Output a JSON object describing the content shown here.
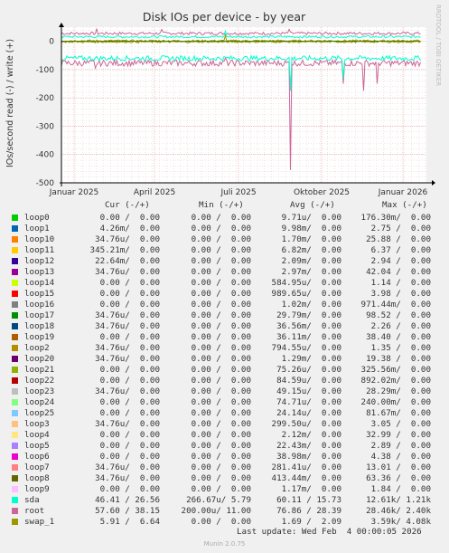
{
  "chart_data": {
    "type": "line",
    "title": "Disk IOs per device - by year",
    "ylabel": "IOs/second read (-) / write (+)",
    "ylim": [
      -500,
      50
    ],
    "yticks": [
      "0",
      "-100",
      "-200",
      "-300",
      "-400",
      "-500"
    ],
    "ytick_values": [
      0,
      -100,
      -200,
      -300,
      -400,
      -500
    ],
    "xticks": [
      "Januar 2025",
      "April 2025",
      "Juli 2025",
      "Oktober 2025",
      "Januar 2026"
    ],
    "grid": true,
    "watermark": "RRDTOOL / TOBI OETIKER",
    "series_approx": [
      {
        "name": "sda",
        "color": "#00e4c0",
        "read_avg": -60,
        "write_avg": 16
      },
      {
        "name": "root",
        "color": "#cc3f87",
        "read_avg": -77,
        "write_avg": 28,
        "read_min": -455
      }
    ]
  },
  "legend": {
    "header": {
      "cur": "Cur (-/+)",
      "min": "Min (-/+)",
      "avg": "Avg (-/+)",
      "max": "Max (-/+)"
    },
    "rows": [
      {
        "name": "loop0",
        "color": "#00cc00",
        "cur": "0.00 /  0.00",
        "min": "0.00 /  0.00",
        "avg": "9.71u/  0.00",
        "max": "176.30m/  0.00"
      },
      {
        "name": "loop1",
        "color": "#0066b3",
        "cur": "4.26m/  0.00",
        "min": "0.00 /  0.00",
        "avg": "9.98m/  0.00",
        "max": "2.75 /  0.00"
      },
      {
        "name": "loop10",
        "color": "#ff8000",
        "cur": "34.76u/  0.00",
        "min": "0.00 /  0.00",
        "avg": "1.70m/  0.00",
        "max": "25.88 /  0.00"
      },
      {
        "name": "loop11",
        "color": "#ffcc00",
        "cur": "345.21m/  0.00",
        "min": "0.00 /  0.00",
        "avg": "6.82m/  0.00",
        "max": "6.37 /  0.00"
      },
      {
        "name": "loop12",
        "color": "#330099",
        "cur": "22.64m/  0.00",
        "min": "0.00 /  0.00",
        "avg": "2.09m/  0.00",
        "max": "2.94 /  0.00"
      },
      {
        "name": "loop13",
        "color": "#990099",
        "cur": "34.76u/  0.00",
        "min": "0.00 /  0.00",
        "avg": "2.97m/  0.00",
        "max": "42.04 /  0.00"
      },
      {
        "name": "loop14",
        "color": "#ccff00",
        "cur": "0.00 /  0.00",
        "min": "0.00 /  0.00",
        "avg": "584.95u/  0.00",
        "max": "1.14 /  0.00"
      },
      {
        "name": "loop15",
        "color": "#ff0000",
        "cur": "0.00 /  0.00",
        "min": "0.00 /  0.00",
        "avg": "989.65u/  0.00",
        "max": "3.98 /  0.00"
      },
      {
        "name": "loop16",
        "color": "#808080",
        "cur": "0.00 /  0.00",
        "min": "0.00 /  0.00",
        "avg": "1.02m/  0.00",
        "max": "971.44m/  0.00"
      },
      {
        "name": "loop17",
        "color": "#008f00",
        "cur": "34.76u/  0.00",
        "min": "0.00 /  0.00",
        "avg": "29.79m/  0.00",
        "max": "98.52 /  0.00"
      },
      {
        "name": "loop18",
        "color": "#00487d",
        "cur": "34.76u/  0.00",
        "min": "0.00 /  0.00",
        "avg": "36.56m/  0.00",
        "max": "2.26 /  0.00"
      },
      {
        "name": "loop19",
        "color": "#b35a00",
        "cur": "0.00 /  0.00",
        "min": "0.00 /  0.00",
        "avg": "36.11m/  0.00",
        "max": "38.40 /  0.00"
      },
      {
        "name": "loop2",
        "color": "#b38f00",
        "cur": "34.76u/  0.00",
        "min": "0.00 /  0.00",
        "avg": "794.55u/  0.00",
        "max": "1.35 /  0.00"
      },
      {
        "name": "loop20",
        "color": "#6b006b",
        "cur": "34.76u/  0.00",
        "min": "0.00 /  0.00",
        "avg": "1.29m/  0.00",
        "max": "19.38 /  0.00"
      },
      {
        "name": "loop21",
        "color": "#8fb300",
        "cur": "0.00 /  0.00",
        "min": "0.00 /  0.00",
        "avg": "75.26u/  0.00",
        "max": "325.56m/  0.00"
      },
      {
        "name": "loop22",
        "color": "#b30000",
        "cur": "0.00 /  0.00",
        "min": "0.00 /  0.00",
        "avg": "84.59u/  0.00",
        "max": "892.02m/  0.00"
      },
      {
        "name": "loop23",
        "color": "#bebebe",
        "cur": "34.76u/  0.00",
        "min": "0.00 /  0.00",
        "avg": "49.15u/  0.00",
        "max": "28.29m/  0.00"
      },
      {
        "name": "loop24",
        "color": "#80ff80",
        "cur": "0.00 /  0.00",
        "min": "0.00 /  0.00",
        "avg": "74.71u/  0.00",
        "max": "240.00m/  0.00"
      },
      {
        "name": "loop25",
        "color": "#80c9ff",
        "cur": "0.00 /  0.00",
        "min": "0.00 /  0.00",
        "avg": "24.14u/  0.00",
        "max": "81.67m/  0.00"
      },
      {
        "name": "loop3",
        "color": "#ffc080",
        "cur": "34.76u/  0.00",
        "min": "0.00 /  0.00",
        "avg": "299.50u/  0.00",
        "max": "3.05 /  0.00"
      },
      {
        "name": "loop4",
        "color": "#ffe680",
        "cur": "0.00 /  0.00",
        "min": "0.00 /  0.00",
        "avg": "2.12m/  0.00",
        "max": "32.99 /  0.00"
      },
      {
        "name": "loop5",
        "color": "#aa80ff",
        "cur": "0.00 /  0.00",
        "min": "0.00 /  0.00",
        "avg": "22.43m/  0.00",
        "max": "2.89 /  0.00"
      },
      {
        "name": "loop6",
        "color": "#ee00cc",
        "cur": "0.00 /  0.00",
        "min": "0.00 /  0.00",
        "avg": "38.98m/  0.00",
        "max": "4.38 /  0.00"
      },
      {
        "name": "loop7",
        "color": "#ff8080",
        "cur": "34.76u/  0.00",
        "min": "0.00 /  0.00",
        "avg": "281.41u/  0.00",
        "max": "13.01 /  0.00"
      },
      {
        "name": "loop8",
        "color": "#666600",
        "cur": "34.76u/  0.00",
        "min": "0.00 /  0.00",
        "avg": "413.44m/  0.00",
        "max": "63.36 /  0.00"
      },
      {
        "name": "loop9",
        "color": "#ffbfff",
        "cur": "0.00 /  0.00",
        "min": "0.00 /  0.00",
        "avg": "1.17m/  0.00",
        "max": "1.84 /  0.00"
      },
      {
        "name": "sda",
        "color": "#00ffcc",
        "cur": "46.41 / 26.56",
        "min": "266.67u/ 5.79",
        "avg": "60.11 / 15.73",
        "max": "12.61k/ 1.21k"
      },
      {
        "name": "root",
        "color": "#cc6699",
        "cur": "57.60 / 38.15",
        "min": "200.00u/ 11.00",
        "avg": "76.86 / 28.39",
        "max": "28.46k/ 2.40k"
      },
      {
        "name": "swap_1",
        "color": "#999900",
        "cur": "5.91 /  6.64",
        "min": "0.00 /  0.00",
        "avg": "1.69 /  2.09",
        "max": "3.59k/ 4.08k"
      }
    ]
  },
  "footer": {
    "last_update": "Last update: Wed Feb  4 00:00:05 2026",
    "version": "Munin 2.0.75"
  }
}
